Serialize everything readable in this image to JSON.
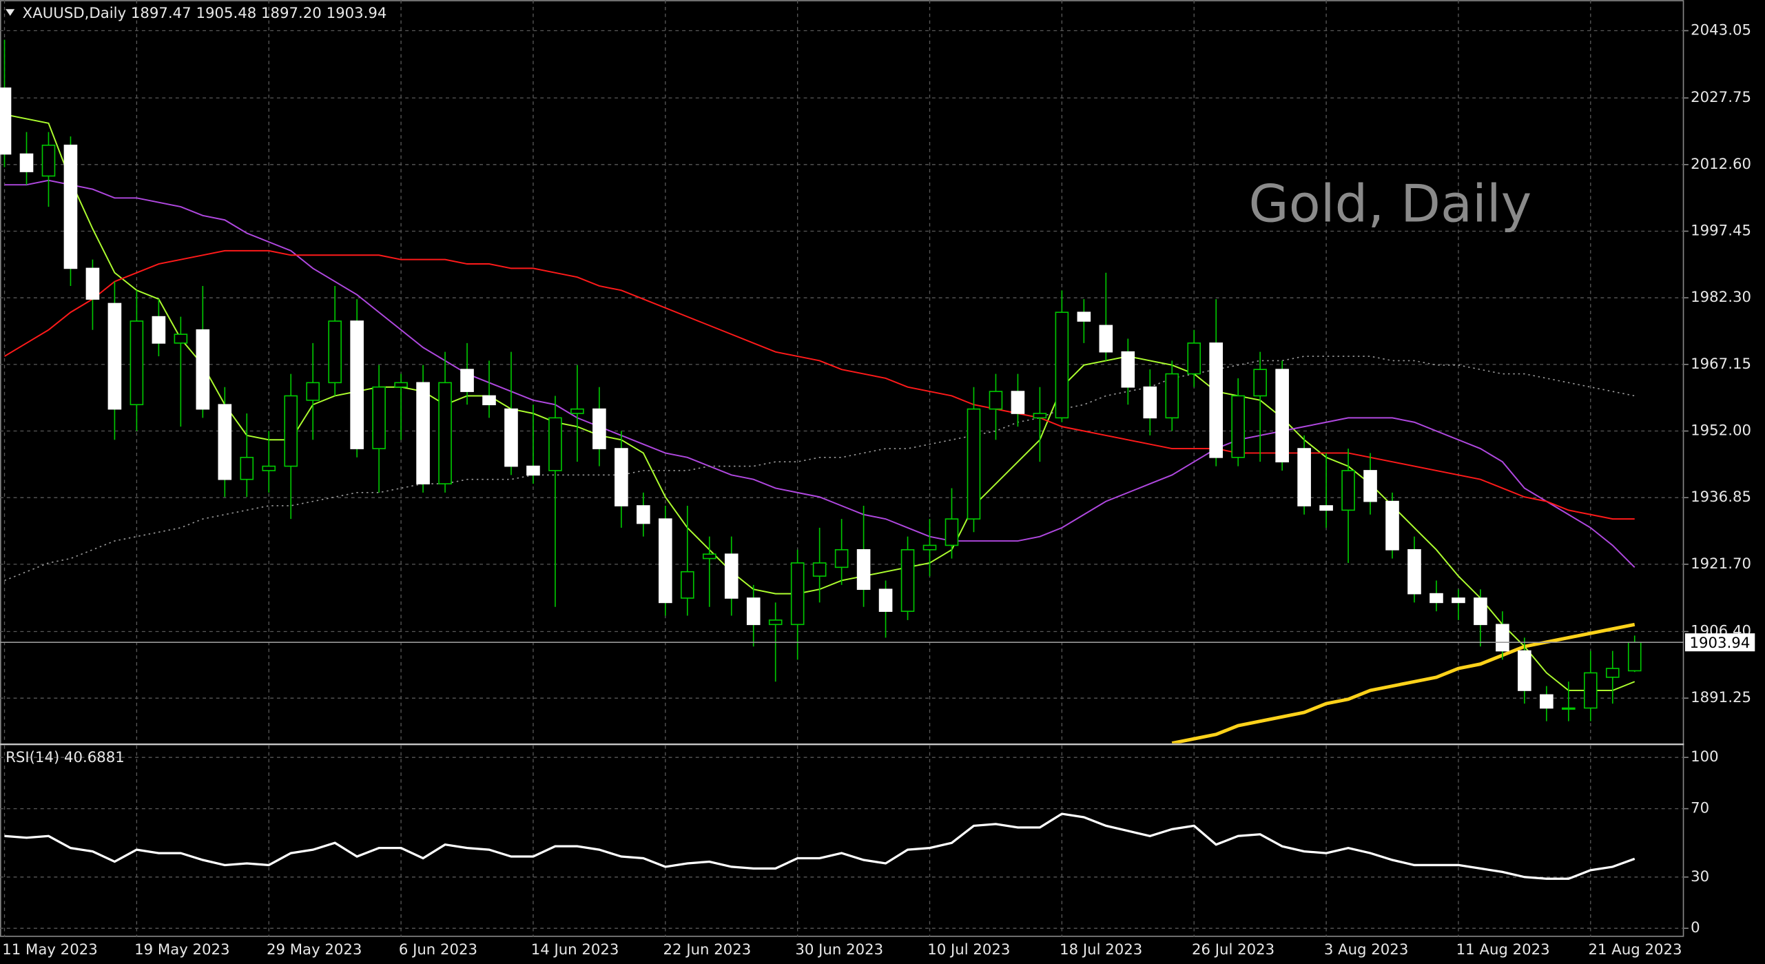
{
  "chart_data": [
    {
      "type": "candlestick",
      "title": "XAUUSD,Daily  1897.47 1905.48 1897.20 1903.94",
      "watermark": "Gold, Daily",
      "categories": [
        "11 May 2023",
        null,
        null,
        null,
        null,
        null,
        "19 May 2023",
        null,
        null,
        null,
        null,
        null,
        "29 May 2023",
        null,
        null,
        null,
        null,
        null,
        "6 Jun 2023",
        null,
        null,
        null,
        null,
        null,
        "14 Jun 2023",
        null,
        null,
        null,
        null,
        null,
        "22 Jun 2023",
        null,
        null,
        null,
        null,
        null,
        "30 Jun 2023",
        null,
        null,
        null,
        null,
        null,
        "10 Jul 2023",
        null,
        null,
        null,
        null,
        null,
        "18 Jul 2023",
        null,
        null,
        null,
        null,
        null,
        "26 Jul 2023",
        null,
        null,
        null,
        null,
        null,
        "3 Aug 2023",
        null,
        null,
        null,
        null,
        null,
        "11 Aug 2023",
        null,
        null,
        null,
        null,
        null,
        "21 Aug 2023",
        null,
        null
      ],
      "open": [
        2030,
        2015,
        2010,
        2017,
        1989,
        1981,
        1958,
        1978,
        1972,
        1975,
        1958,
        1941,
        1943,
        1944,
        1959,
        1963,
        1977,
        1948,
        1962,
        1963,
        1940,
        1966,
        1960,
        1957,
        1944,
        1943,
        1956,
        1957,
        1948,
        1935,
        1932,
        1914,
        1923,
        1924,
        1914,
        1908,
        1908,
        1919,
        1921,
        1925,
        1916,
        1911,
        1925,
        1926,
        1932,
        1957,
        1961,
        1955,
        1955,
        1979,
        1976,
        1970,
        1962,
        1955,
        1965,
        1972,
        1946,
        1960,
        1966,
        1948,
        1935,
        1934,
        1943,
        1936,
        1925,
        1915,
        1914,
        1914,
        1908,
        1902,
        1892,
        1889,
        1889,
        1896,
        1897.47
      ],
      "high": [
        2041,
        2020,
        2020,
        2019,
        1991,
        1986,
        1984,
        1982,
        1978,
        1985,
        1962,
        1956,
        1952,
        1965,
        1972,
        1985,
        1982,
        1967,
        1965,
        1967,
        1970,
        1972,
        1968,
        1970,
        1958,
        1960,
        1967,
        1962,
        1952,
        1938,
        1935,
        1935,
        1928,
        1928,
        1917,
        1913,
        1925,
        1930,
        1932,
        1935,
        1918,
        1928,
        1932,
        1939,
        1962,
        1965,
        1965,
        1962,
        1984,
        1982,
        1988,
        1973,
        1966,
        1968,
        1975,
        1982,
        1964,
        1970,
        1968,
        1951,
        1947,
        1948,
        1947,
        1938,
        1928,
        1918,
        1916,
        1916,
        1911,
        1905,
        1894,
        1895,
        1902,
        1902,
        1905.48
      ],
      "low": [
        2012,
        2008,
        2003,
        1985,
        1975,
        1950,
        1952,
        1969,
        1953,
        1955,
        1937,
        1937,
        1938,
        1932,
        1950,
        1960,
        1946,
        1938,
        1950,
        1938,
        1938,
        1958,
        1955,
        1942,
        1940,
        1912,
        1945,
        1944,
        1930,
        1928,
        1910,
        1910,
        1912,
        1910,
        1903,
        1895,
        1900,
        1913,
        1917,
        1912,
        1905,
        1909,
        1919,
        1923,
        1929,
        1950,
        1953,
        1945,
        1954,
        1972,
        1968,
        1958,
        1951,
        1952,
        1962,
        1944,
        1944,
        1945,
        1943,
        1933,
        1930,
        1922,
        1933,
        1923,
        1913,
        1911,
        1909,
        1903,
        1900,
        1890,
        1886,
        1886,
        1886,
        1890,
        1897.2
      ],
      "close": [
        2015,
        2011,
        2017,
        1989,
        1982,
        1957,
        1977,
        1972,
        1974,
        1957,
        1941,
        1946,
        1944,
        1960,
        1963,
        1977,
        1948,
        1962,
        1963,
        1940,
        1963,
        1961,
        1958,
        1944,
        1942,
        1955,
        1957,
        1948,
        1935,
        1931,
        1913,
        1920,
        1924,
        1914,
        1908,
        1909,
        1922,
        1922,
        1925,
        1916,
        1911,
        1925,
        1926,
        1932,
        1957,
        1961,
        1956,
        1956,
        1979,
        1977,
        1970,
        1962,
        1955,
        1965,
        1972,
        1946,
        1960,
        1966,
        1945,
        1935,
        1934,
        1943,
        1936,
        1925,
        1915,
        1913,
        1913,
        1908,
        1902,
        1893,
        1889,
        1889,
        1897,
        1898,
        1903.94
      ],
      "bull_color": "#00c800",
      "bear_color": "#ffffff",
      "series": [
        {
          "color": "#adff2f",
          "style": "solid",
          "values": [
            2024,
            2023,
            2022,
            2009,
            1998,
            1988,
            1984,
            1982,
            1973,
            1967,
            1958,
            1951,
            1950,
            1950,
            1958,
            1960,
            1961,
            1962,
            1962,
            1961,
            1958,
            1960,
            1960,
            1957,
            1956,
            1954,
            1953,
            1951,
            1950,
            1947,
            1937,
            1930,
            1925,
            1920,
            1916,
            1915,
            1915,
            1916,
            1918,
            1919,
            1920,
            1921,
            1922,
            1925,
            1935,
            1940,
            1945,
            1950,
            1962,
            1967,
            1968,
            1969,
            1968,
            1967,
            1965,
            1961,
            1960,
            1959,
            1955,
            1950,
            1946,
            1944,
            1940,
            1935,
            1930,
            1925,
            1919,
            1914,
            1908,
            1903,
            1897,
            1893,
            1893,
            1893,
            1895
          ]
        },
        {
          "color": "#b048e0",
          "style": "solid",
          "values": [
            2008,
            2008,
            2009,
            2008,
            2007,
            2005,
            2005,
            2004,
            2003,
            2001,
            2000,
            1997,
            1995,
            1993,
            1989,
            1986,
            1983,
            1979,
            1975,
            1971,
            1968,
            1965,
            1963,
            1961,
            1959,
            1958,
            1955,
            1953,
            1951,
            1949,
            1947,
            1946,
            1944,
            1942,
            1941,
            1939,
            1938,
            1937,
            1935,
            1933,
            1932,
            1930,
            1928,
            1927,
            1927,
            1927,
            1927,
            1928,
            1930,
            1933,
            1936,
            1938,
            1940,
            1942,
            1945,
            1948,
            1950,
            1951,
            1952,
            1953,
            1954,
            1955,
            1955,
            1955,
            1954,
            1952,
            1950,
            1948,
            1945,
            1939,
            1936,
            1933,
            1930,
            1926,
            1921
          ]
        },
        {
          "color": "#ff1a1a",
          "style": "solid",
          "values": [
            1969,
            1972,
            1975,
            1979,
            1982,
            1986,
            1988,
            1990,
            1991,
            1992,
            1993,
            1993,
            1993,
            1992,
            1992,
            1992,
            1992,
            1992,
            1991,
            1991,
            1991,
            1990,
            1990,
            1989,
            1989,
            1988,
            1987,
            1985,
            1984,
            1982,
            1980,
            1978,
            1976,
            1974,
            1972,
            1970,
            1969,
            1968,
            1966,
            1965,
            1964,
            1962,
            1961,
            1960,
            1958,
            1957,
            1956,
            1955,
            1953,
            1952,
            1951,
            1950,
            1949,
            1948,
            1948,
            1948,
            1947,
            1947,
            1947,
            1947,
            1947,
            1947,
            1946,
            1945,
            1944,
            1943,
            1942,
            1941,
            1939,
            1937,
            1936,
            1934,
            1933,
            1932,
            1932
          ]
        },
        {
          "color": "#9a9a9a",
          "style": "dotted",
          "values": [
            1918,
            1920,
            1922,
            1923,
            1925,
            1927,
            1928,
            1929,
            1930,
            1932,
            1933,
            1934,
            1935,
            1935,
            1936,
            1937,
            1938,
            1938,
            1939,
            1940,
            1940,
            1941,
            1941,
            1941,
            1942,
            1942,
            1942,
            1942,
            1942,
            1943,
            1943,
            1943,
            1944,
            1944,
            1944,
            1945,
            1945,
            1946,
            1946,
            1947,
            1948,
            1948,
            1949,
            1950,
            1951,
            1952,
            1954,
            1955,
            1957,
            1958,
            1960,
            1961,
            1962,
            1964,
            1965,
            1966,
            1967,
            1968,
            1968,
            1969,
            1969,
            1969,
            1969,
            1968,
            1968,
            1967,
            1967,
            1966,
            1965,
            1965,
            1964,
            1963,
            1962,
            1961,
            1960
          ]
        },
        {
          "color": "#ffd21a",
          "style": "thick",
          "values": [
            null,
            null,
            null,
            null,
            null,
            null,
            null,
            null,
            null,
            null,
            null,
            null,
            null,
            null,
            null,
            null,
            null,
            null,
            null,
            null,
            null,
            null,
            null,
            null,
            null,
            null,
            null,
            null,
            null,
            null,
            null,
            null,
            null,
            null,
            null,
            null,
            null,
            null,
            null,
            null,
            null,
            null,
            null,
            null,
            null,
            null,
            null,
            null,
            null,
            null,
            null,
            null,
            null,
            1881,
            1882,
            1883,
            1885,
            1886,
            1887,
            1888,
            1890,
            1891,
            1893,
            1894,
            1895,
            1896,
            1898,
            1899,
            1901,
            1903,
            1904,
            1905,
            1906,
            1907,
            1908
          ]
        }
      ],
      "last_price": 1903.94,
      "ylim": [
        1881,
        2050
      ],
      "yticks": [
        2043.05,
        2027.75,
        {
          "value": 2012.6,
          "label": "2012.60"
        },
        1997.45,
        {
          "value": 1982.3,
          "label": "1982.30"
        },
        1967.15,
        {
          "value": 1952,
          "label": "1952.00"
        },
        1936.85,
        {
          "value": 1921.7,
          "label": "1921.70"
        },
        {
          "value": 1906.4,
          "label": "1906.40"
        },
        1891.25
      ],
      "grid": true
    },
    {
      "type": "line",
      "title": "RSI(14) 40.6881",
      "color": "#ffffff",
      "values": [
        54,
        53,
        54,
        47,
        45,
        39,
        46,
        44,
        44,
        40,
        37,
        38,
        37,
        44,
        46,
        50,
        42,
        47,
        47,
        41,
        49,
        47,
        46,
        42,
        42,
        48,
        48,
        46,
        42,
        41,
        36,
        38,
        39,
        36,
        35,
        35,
        41,
        41,
        44,
        40,
        38,
        46,
        47,
        50,
        60,
        61,
        59,
        59,
        67,
        65,
        60,
        57,
        54,
        58,
        60,
        49,
        54,
        55,
        48,
        45,
        44,
        47,
        44,
        40,
        37,
        37,
        37,
        35,
        33,
        30,
        29,
        29,
        34,
        36,
        40.6881
      ],
      "ylim": [
        -5,
        107
      ],
      "yticks": [
        100,
        70,
        30,
        0
      ],
      "grid": true
    }
  ]
}
